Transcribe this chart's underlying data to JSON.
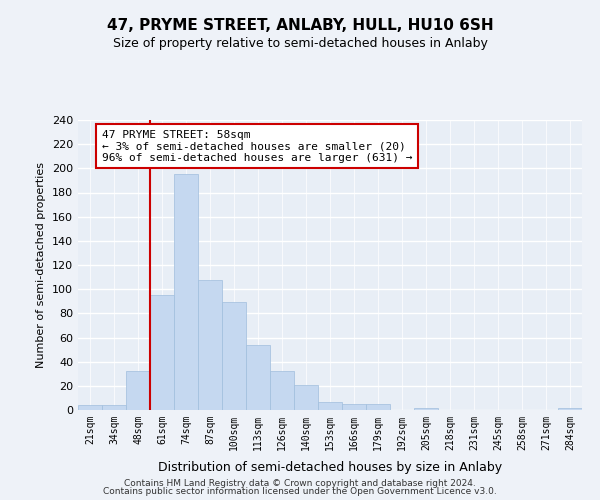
{
  "title": "47, PRYME STREET, ANLABY, HULL, HU10 6SH",
  "subtitle": "Size of property relative to semi-detached houses in Anlaby",
  "xlabel": "Distribution of semi-detached houses by size in Anlaby",
  "ylabel": "Number of semi-detached properties",
  "bin_labels": [
    "21sqm",
    "34sqm",
    "48sqm",
    "61sqm",
    "74sqm",
    "87sqm",
    "100sqm",
    "113sqm",
    "126sqm",
    "140sqm",
    "153sqm",
    "166sqm",
    "179sqm",
    "192sqm",
    "205sqm",
    "218sqm",
    "231sqm",
    "245sqm",
    "258sqm",
    "271sqm",
    "284sqm"
  ],
  "bar_values": [
    4,
    4,
    32,
    95,
    195,
    108,
    89,
    54,
    32,
    21,
    7,
    5,
    5,
    0,
    2,
    0,
    0,
    0,
    0,
    0,
    2
  ],
  "bar_color": "#c5d8f0",
  "bar_edge_color": "#a0bedd",
  "marker_line_color": "#cc0000",
  "annotation_title": "47 PRYME STREET: 58sqm",
  "annotation_line1": "← 3% of semi-detached houses are smaller (20)",
  "annotation_line2": "96% of semi-detached houses are larger (631) →",
  "annotation_box_color": "white",
  "annotation_box_edge": "#cc0000",
  "ylim": [
    0,
    240
  ],
  "yticks": [
    0,
    20,
    40,
    60,
    80,
    100,
    120,
    140,
    160,
    180,
    200,
    220,
    240
  ],
  "footer1": "Contains HM Land Registry data © Crown copyright and database right 2024.",
  "footer2": "Contains public sector information licensed under the Open Government Licence v3.0.",
  "bg_color": "#eef2f8",
  "plot_bg_color": "#e8eef6",
  "grid_color": "#ffffff"
}
